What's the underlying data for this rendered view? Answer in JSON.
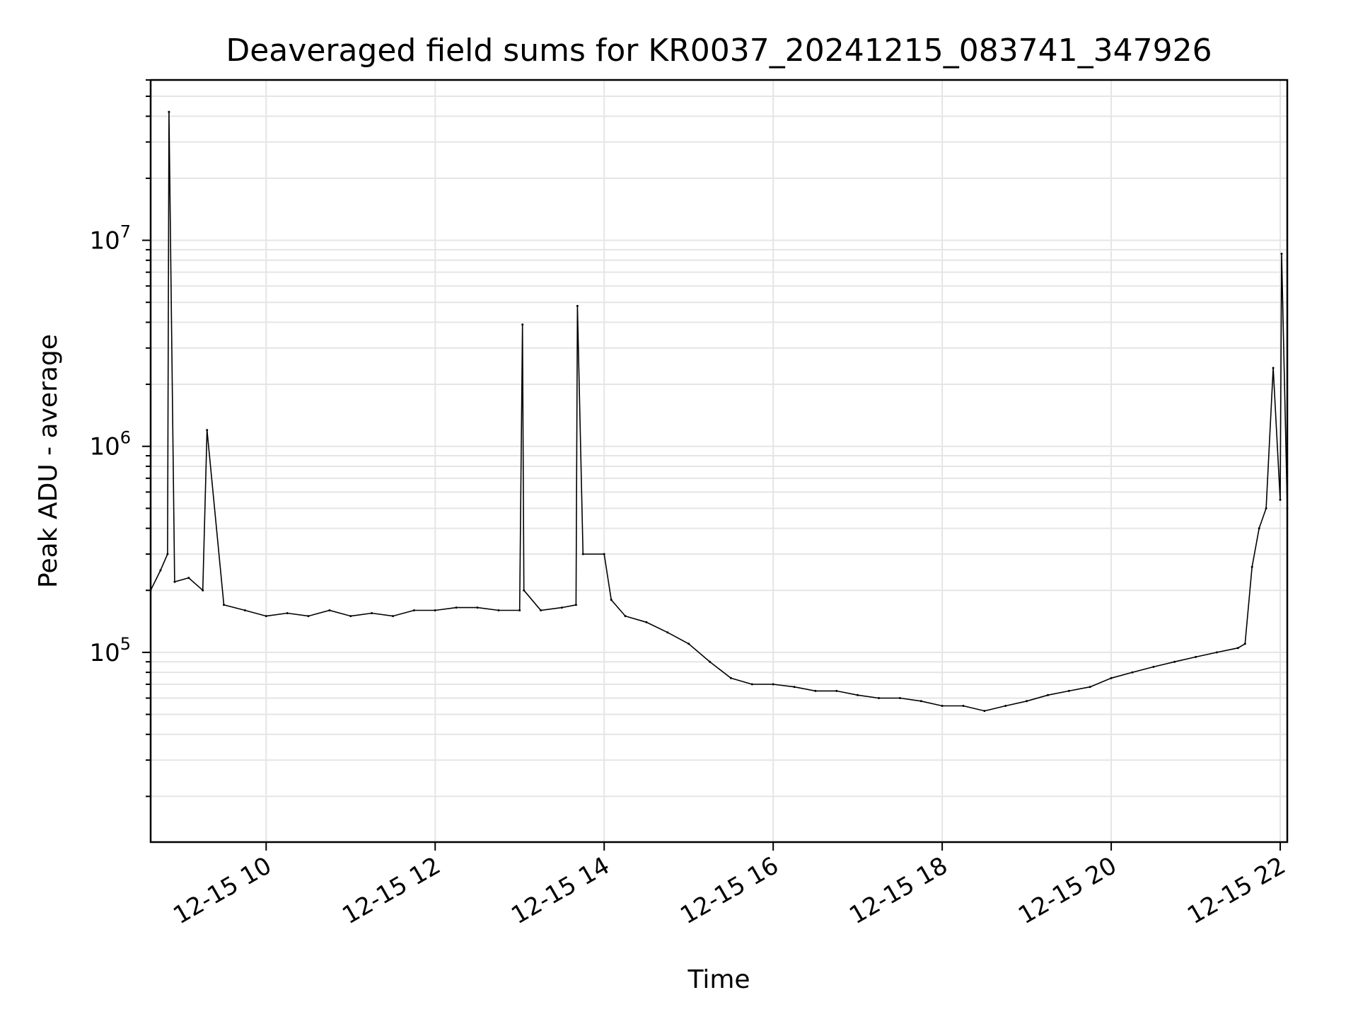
{
  "chart_data": {
    "type": "line",
    "title": "Deaveraged field sums for KR0037_20241215_083741_347926",
    "xlabel": "Time",
    "ylabel": "Peak ADU - average",
    "x_unit": "hours (date 12-15)",
    "xlim": [
      "12-15 08:38",
      "12-15 22:05"
    ],
    "ylim": [
      12000,
      60000000
    ],
    "yscale": "log",
    "grid": true,
    "line_color": "#000000",
    "grid_color": "#e5e5e5",
    "x_ticks": [
      "12-15 10",
      "12-15 12",
      "12-15 14",
      "12-15 16",
      "12-15 18",
      "12-15 20",
      "12-15 22"
    ],
    "y_ticks": [
      {
        "value": 100000,
        "base": "10",
        "exp": "5"
      },
      {
        "value": 1000000,
        "base": "10",
        "exp": "6"
      },
      {
        "value": 10000000,
        "base": "10",
        "exp": "7"
      }
    ],
    "series": [
      {
        "x": [
          "08:38",
          "08:45",
          "08:50",
          "08:51",
          "08:55",
          "09:05",
          "09:15",
          "09:18",
          "09:30",
          "09:45",
          "10:00",
          "10:15",
          "10:30",
          "10:45",
          "11:00",
          "11:15",
          "11:30",
          "11:45",
          "12:00",
          "12:15",
          "12:30",
          "12:45",
          "13:00",
          "13:02",
          "13:03",
          "13:15",
          "13:30",
          "13:40",
          "13:41",
          "13:45",
          "14:00",
          "14:05",
          "14:15",
          "14:30",
          "14:45",
          "15:00",
          "15:15",
          "15:30",
          "15:45",
          "16:00",
          "16:15",
          "16:30",
          "16:45",
          "17:00",
          "17:15",
          "17:30",
          "17:45",
          "18:00",
          "18:15",
          "18:30",
          "18:45",
          "19:00",
          "19:15",
          "19:30",
          "19:45",
          "20:00",
          "20:15",
          "20:30",
          "20:45",
          "21:00",
          "21:15",
          "21:30",
          "21:35",
          "21:40",
          "21:45",
          "21:50",
          "21:55",
          "22:00",
          "22:01",
          "22:05"
        ],
        "y": [
          200000,
          250000,
          300000,
          42000000,
          220000,
          230000,
          200000,
          1200000,
          170000,
          160000,
          150000,
          155000,
          150000,
          160000,
          150000,
          155000,
          150000,
          160000,
          160000,
          165000,
          165000,
          160000,
          160000,
          3900000,
          200000,
          160000,
          165000,
          170000,
          4800000,
          300000,
          300000,
          180000,
          150000,
          140000,
          125000,
          110000,
          90000,
          75000,
          70000,
          70000,
          68000,
          65000,
          65000,
          62000,
          60000,
          60000,
          58000,
          55000,
          55000,
          52000,
          55000,
          58000,
          62000,
          65000,
          68000,
          75000,
          80000,
          85000,
          90000,
          95000,
          100000,
          105000,
          110000,
          260000,
          400000,
          500000,
          2400000,
          550000,
          8600000,
          500000
        ]
      }
    ]
  }
}
